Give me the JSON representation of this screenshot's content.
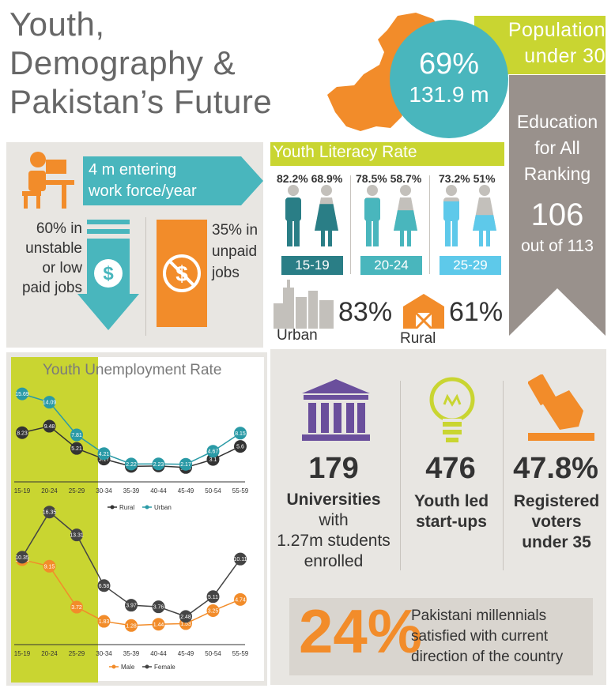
{
  "title": {
    "line1": "Youth,",
    "line2": "Demography &",
    "line3": "Pakistan’s Future"
  },
  "population": {
    "label_line1": "Population",
    "label_line2": "under 30",
    "percent": "69%",
    "count": "131.9 m"
  },
  "education": {
    "line1": "Education",
    "line2": "for All",
    "line3": "Ranking",
    "rank": "106",
    "out_of": "out of 113"
  },
  "work": {
    "arrow_line1": "4 m entering",
    "arrow_line2": "work force/year",
    "unstable": [
      "60% in",
      "unstable",
      "or low",
      "paid jobs"
    ],
    "unpaid": [
      "35% in",
      "unpaid",
      "jobs"
    ]
  },
  "literacy": {
    "title": "Youth Literacy Rate",
    "groups": [
      {
        "male": "82.2%",
        "female": "68.9%",
        "age": "15-19",
        "male_level": 0.822,
        "female_level": 0.689
      },
      {
        "male": "78.5%",
        "female": "58.7%",
        "age": "20-24",
        "male_level": 0.785,
        "female_level": 0.587
      },
      {
        "male": "73.2%",
        "female": "51%",
        "age": "25-29",
        "male_level": 0.732,
        "female_level": 0.51
      }
    ],
    "urban_pct": "83%",
    "urban_label": "Urban",
    "rural_pct": "61%",
    "rural_label": "Rural"
  },
  "unemployment": {
    "title_part1": "Youth",
    "title_part2": "Unemployment Rate"
  },
  "stats": {
    "universities_num": "179",
    "universities_lines": [
      "Universities",
      "with",
      "1.27m students",
      "enrolled"
    ],
    "startups_num": "476",
    "startups_lines": [
      "Youth led",
      "start-ups"
    ],
    "voters_num": "47.8%",
    "voters_lines": [
      "Registered",
      "voters",
      "under 35"
    ]
  },
  "millennials": {
    "percent": "24%",
    "lines": [
      "Pakistani millennials",
      "satisfied with current",
      "direction of the country"
    ]
  },
  "colors": {
    "lime": "#c9d531",
    "teal": "#49b6bd",
    "orange": "#f28c2a",
    "grey_panel": "#e8e6e2",
    "dark": "#333333",
    "rural": "#333333",
    "urban": "#2a9aa6",
    "male": "#f28c2a",
    "female": "#444444"
  },
  "chart_data": [
    {
      "type": "line",
      "categories": [
        "15-19",
        "20-24",
        "25-29",
        "30-34",
        "35-39",
        "40-44",
        "45-49",
        "50-54",
        "55-59"
      ],
      "series": [
        {
          "name": "Rural",
          "values": [
            8.23,
            9.48,
            5.21,
            3.17,
            1.77,
            1.84,
            1.55,
            3.1,
            5.6
          ]
        },
        {
          "name": "Urban",
          "values": [
            15.69,
            14.09,
            7.81,
            4.21,
            2.22,
            2.23,
            2.17,
            4.67,
            8.15
          ]
        }
      ],
      "legend": "bottom"
    },
    {
      "type": "line",
      "categories": [
        "15-19",
        "20-24",
        "25-29",
        "30-34",
        "35-39",
        "40-44",
        "45-49",
        "50-54",
        "55-59"
      ],
      "series": [
        {
          "name": "Male",
          "values": [
            10.03,
            9.15,
            3.72,
            1.83,
            1.28,
            1.44,
            1.53,
            3.25,
            4.74
          ]
        },
        {
          "name": "Female",
          "values": [
            10.35,
            16.35,
            13.31,
            6.58,
            3.97,
            3.76,
            2.48,
            5.11,
            10.11
          ]
        }
      ],
      "legend": "bottom"
    }
  ]
}
